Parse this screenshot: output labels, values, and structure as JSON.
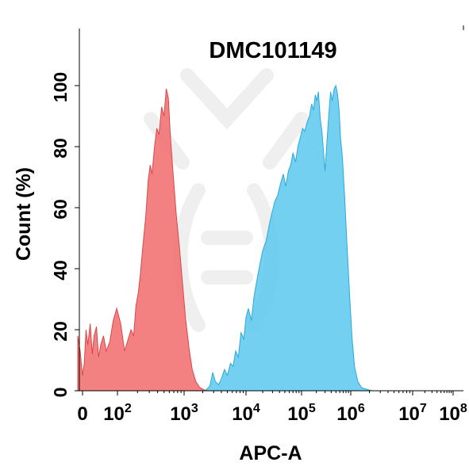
{
  "chart_data": {
    "type": "area",
    "title": "DMC101149",
    "xlabel": "APC-A",
    "ylabel": "Count  (%)",
    "x_scale": "biexponential",
    "xlim": [
      -10,
      100000000
    ],
    "ylim": [
      0,
      108
    ],
    "x_ticks": [
      {
        "value": 0,
        "base": "0",
        "exp": ""
      },
      {
        "value": 100,
        "base": "10",
        "exp": "2"
      },
      {
        "value": 1000,
        "base": "10",
        "exp": "3"
      },
      {
        "value": 10000,
        "base": "10",
        "exp": "4"
      },
      {
        "value": 100000,
        "base": "10",
        "exp": "5"
      },
      {
        "value": 1000000,
        "base": "10",
        "exp": "6"
      },
      {
        "value": 10000000,
        "base": "10",
        "exp": "7"
      },
      {
        "value": 100000000,
        "base": "10",
        "exp": "8"
      }
    ],
    "y_ticks": [
      0,
      20,
      40,
      60,
      80,
      100
    ],
    "grid": false,
    "watermark": "company-logo",
    "series": [
      {
        "color": "#f26b6b",
        "stroke": "#d94848",
        "points": [
          [
            -10,
            18
          ],
          [
            -5,
            13
          ],
          [
            0,
            5
          ],
          [
            5,
            9
          ],
          [
            10,
            20
          ],
          [
            15,
            15
          ],
          [
            22,
            22
          ],
          [
            28,
            12
          ],
          [
            33,
            18
          ],
          [
            40,
            21
          ],
          [
            46,
            11
          ],
          [
            52,
            15
          ],
          [
            60,
            18
          ],
          [
            68,
            13
          ],
          [
            78,
            16
          ],
          [
            88,
            23
          ],
          [
            98,
            27
          ],
          [
            112,
            22
          ],
          [
            128,
            13
          ],
          [
            145,
            17
          ],
          [
            160,
            20
          ],
          [
            175,
            18
          ],
          [
            190,
            28
          ],
          [
            205,
            32
          ],
          [
            220,
            38
          ],
          [
            240,
            47
          ],
          [
            265,
            57
          ],
          [
            290,
            69
          ],
          [
            310,
            74
          ],
          [
            330,
            71
          ],
          [
            360,
            80
          ],
          [
            390,
            86
          ],
          [
            420,
            84
          ],
          [
            460,
            93
          ],
          [
            500,
            90
          ],
          [
            540,
            99
          ],
          [
            580,
            96
          ],
          [
            620,
            84
          ],
          [
            680,
            72
          ],
          [
            760,
            58
          ],
          [
            850,
            47
          ],
          [
            950,
            35
          ],
          [
            1050,
            24
          ],
          [
            1200,
            14
          ],
          [
            1350,
            7
          ],
          [
            1550,
            3
          ],
          [
            1800,
            1
          ],
          [
            2100,
            0.3
          ],
          [
            2400,
            0
          ]
        ]
      },
      {
        "color": "#5bc8ef",
        "stroke": "#2ba9da",
        "points": [
          [
            2200,
            0
          ],
          [
            2600,
            1.5
          ],
          [
            2900,
            6
          ],
          [
            3200,
            3
          ],
          [
            3600,
            2
          ],
          [
            4000,
            4
          ],
          [
            4500,
            7
          ],
          [
            5000,
            5
          ],
          [
            5600,
            9
          ],
          [
            6200,
            8
          ],
          [
            6800,
            13
          ],
          [
            7500,
            11
          ],
          [
            8300,
            19
          ],
          [
            9200,
            17
          ],
          [
            10000,
            24
          ],
          [
            11000,
            27
          ],
          [
            12500,
            23
          ],
          [
            14000,
            31
          ],
          [
            16000,
            37
          ],
          [
            18000,
            42
          ],
          [
            20000,
            46
          ],
          [
            23000,
            49
          ],
          [
            26000,
            54
          ],
          [
            29000,
            58
          ],
          [
            33000,
            62
          ],
          [
            37000,
            64
          ],
          [
            42000,
            68
          ],
          [
            47000,
            71
          ],
          [
            52000,
            67
          ],
          [
            58000,
            72
          ],
          [
            64000,
            74
          ],
          [
            70000,
            78
          ],
          [
            78000,
            75
          ],
          [
            86000,
            80
          ],
          [
            95000,
            83
          ],
          [
            105000,
            86
          ],
          [
            115000,
            85
          ],
          [
            130000,
            88
          ],
          [
            145000,
            90
          ],
          [
            160000,
            94
          ],
          [
            175000,
            92
          ],
          [
            190000,
            97
          ],
          [
            205000,
            95
          ],
          [
            220000,
            98
          ],
          [
            240000,
            89
          ],
          [
            260000,
            85
          ],
          [
            280000,
            78
          ],
          [
            300000,
            72
          ],
          [
            330000,
            82
          ],
          [
            360000,
            91
          ],
          [
            390000,
            98
          ],
          [
            420000,
            95
          ],
          [
            460000,
            99
          ],
          [
            500000,
            100
          ],
          [
            540000,
            97
          ],
          [
            580000,
            92
          ],
          [
            620000,
            83
          ],
          [
            680000,
            76
          ],
          [
            760000,
            62
          ],
          [
            850000,
            46
          ],
          [
            950000,
            31
          ],
          [
            1050000,
            17
          ],
          [
            1150000,
            8
          ],
          [
            1300000,
            3
          ],
          [
            1500000,
            1
          ],
          [
            1800000,
            0.5
          ],
          [
            2200000,
            0
          ]
        ]
      }
    ]
  }
}
